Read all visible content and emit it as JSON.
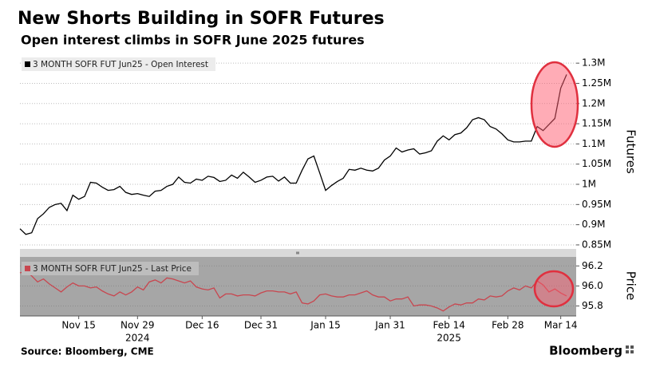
{
  "header": {
    "title": "New Shorts Building in SOFR Futures",
    "subtitle": "Open interest climbs in SOFR June 2025 futures"
  },
  "footer": {
    "source": "Source: Bloomberg, CME",
    "brand": "Bloomberg"
  },
  "chart_data": [
    {
      "type": "line",
      "ylabel": "Futures",
      "series": [
        {
          "name": "3 MONTH SOFR FUT Jun25 - Open Interest",
          "color": "#000000",
          "values": [
            890000,
            876000,
            880000,
            915000,
            927000,
            943000,
            950000,
            953000,
            935000,
            973000,
            963000,
            970000,
            1005000,
            1003000,
            993000,
            985000,
            987000,
            995000,
            980000,
            975000,
            977000,
            973000,
            970000,
            983000,
            985000,
            995000,
            1000000,
            1018000,
            1005000,
            1003000,
            1013000,
            1010000,
            1020000,
            1017000,
            1007000,
            1010000,
            1023000,
            1015000,
            1030000,
            1018000,
            1005000,
            1010000,
            1018000,
            1020000,
            1008000,
            1018000,
            1003000,
            1003000,
            1035000,
            1063000,
            1070000,
            1028000,
            985000,
            997000,
            1007000,
            1015000,
            1037000,
            1035000,
            1040000,
            1035000,
            1033000,
            1040000,
            1060000,
            1070000,
            1090000,
            1080000,
            1085000,
            1088000,
            1075000,
            1078000,
            1083000,
            1107000,
            1120000,
            1110000,
            1123000,
            1127000,
            1140000,
            1160000,
            1165000,
            1160000,
            1143000,
            1137000,
            1125000,
            1110000,
            1105000,
            1105000,
            1107000,
            1107000,
            1143000,
            1133000,
            1148000,
            1163000,
            1238000,
            1272000
          ]
        }
      ],
      "ylim": [
        840000,
        1326000
      ],
      "yticks": [
        {
          "value": 850000,
          "label": "0.85M"
        },
        {
          "value": 900000,
          "label": "0.9M"
        },
        {
          "value": 950000,
          "label": "0.95M"
        },
        {
          "value": 1000000,
          "label": "1M"
        },
        {
          "value": 1050000,
          "label": "1.05M"
        },
        {
          "value": 1100000,
          "label": "1.1M"
        },
        {
          "value": 1150000,
          "label": "1.15M"
        },
        {
          "value": 1200000,
          "label": "1.2M"
        },
        {
          "value": 1250000,
          "label": "1.25M"
        },
        {
          "value": 1300000,
          "label": "1.3M"
        }
      ],
      "grid": true,
      "legend": "upper left"
    },
    {
      "type": "line",
      "ylabel": "Price",
      "categories": [
        null,
        null,
        null,
        null,
        null,
        null,
        null,
        null,
        null,
        null,
        "Nov 15",
        null,
        null,
        null,
        null,
        null,
        null,
        null,
        null,
        null,
        "Nov 29",
        null,
        null,
        null,
        null,
        null,
        null,
        null,
        null,
        null,
        null,
        "Dec 16",
        null,
        null,
        null,
        null,
        null,
        null,
        null,
        null,
        null,
        "Dec 31",
        null,
        null,
        null,
        null,
        null,
        null,
        null,
        null,
        null,
        null,
        "Jan 15",
        null,
        null,
        null,
        null,
        null,
        null,
        null,
        null,
        null,
        null,
        "Jan 31",
        null,
        null,
        null,
        null,
        null,
        null,
        null,
        null,
        null,
        "Feb 14",
        null,
        null,
        null,
        null,
        null,
        null,
        null,
        null,
        null,
        "Feb 28",
        null,
        null,
        null,
        null,
        null,
        null,
        null,
        null,
        "Mar 14",
        null
      ],
      "year_labels": [
        {
          "label": "2024",
          "category": "Nov 29"
        },
        {
          "label": "2025",
          "category": "Feb 14"
        }
      ],
      "series": [
        {
          "name": "3 MONTH SOFR FUT Jun25 - Last Price",
          "color": "#c8464f",
          "values": [
            96.13,
            96.15,
            96.1,
            96.04,
            96.07,
            96.02,
            95.98,
            95.94,
            95.99,
            96.03,
            96.0,
            96.0,
            95.98,
            95.99,
            95.95,
            95.92,
            95.9,
            95.94,
            95.91,
            95.94,
            95.99,
            95.96,
            96.04,
            96.06,
            96.03,
            96.08,
            96.07,
            96.05,
            96.03,
            96.05,
            95.99,
            95.97,
            95.96,
            95.98,
            95.88,
            95.92,
            95.92,
            95.9,
            95.91,
            95.91,
            95.9,
            95.93,
            95.95,
            95.95,
            95.94,
            95.94,
            95.92,
            95.94,
            95.83,
            95.82,
            95.85,
            95.91,
            95.92,
            95.9,
            95.89,
            95.89,
            95.91,
            95.91,
            95.93,
            95.95,
            95.91,
            95.89,
            95.89,
            95.85,
            95.87,
            95.87,
            95.89,
            95.8,
            95.81,
            95.81,
            95.8,
            95.78,
            95.75,
            95.79,
            95.82,
            95.81,
            95.83,
            95.83,
            95.87,
            95.86,
            95.9,
            95.89,
            95.9,
            95.95,
            95.98,
            95.96,
            96.0,
            95.98,
            96.05,
            96.01,
            95.94,
            95.97,
            95.93,
            95.9
          ]
        }
      ],
      "ylim": [
        95.7,
        96.29
      ],
      "yticks": [
        95.8,
        {
          "value": 96,
          "label": "96.0"
        },
        96.2
      ],
      "grid": true,
      "legend": "upper left"
    }
  ]
}
